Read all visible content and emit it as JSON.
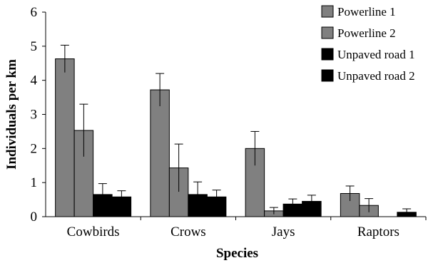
{
  "chart_data": {
    "type": "bar",
    "title": "",
    "xlabel": "Species",
    "ylabel": "Individuals per km",
    "categories": [
      "Cowbirds",
      "Crows",
      "Jays",
      "Raptors"
    ],
    "ylim": [
      0,
      6
    ],
    "yticks": [
      "0",
      "1",
      "2",
      "3",
      "4",
      "5",
      "6"
    ],
    "grid": false,
    "legend_position": "top-right",
    "series": [
      {
        "name": "Powerline 1",
        "color": "#808080",
        "values": [
          4.63,
          3.72,
          2.0,
          0.68
        ],
        "errors": [
          0.4,
          0.48,
          0.5,
          0.22
        ]
      },
      {
        "name": "Powerline 2",
        "color": "#808080",
        "values": [
          2.53,
          1.43,
          0.17,
          0.33
        ],
        "errors": [
          0.77,
          0.7,
          0.1,
          0.2
        ]
      },
      {
        "name": "Unpaved road 1",
        "color": "#000000",
        "values": [
          0.65,
          0.65,
          0.37,
          0.0
        ],
        "errors": [
          0.32,
          0.37,
          0.15,
          0.0
        ]
      },
      {
        "name": "Unpaved road 2",
        "color": "#000000",
        "values": [
          0.58,
          0.58,
          0.45,
          0.13
        ],
        "errors": [
          0.18,
          0.2,
          0.18,
          0.1
        ]
      }
    ]
  }
}
